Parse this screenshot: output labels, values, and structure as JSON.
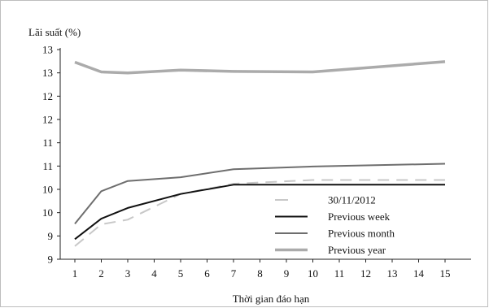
{
  "chart_data": {
    "type": "line",
    "ylabel": "Lãi suất (%)",
    "xlabel": "Thời gian đáo hạn",
    "x": [
      1,
      2,
      3,
      4,
      5,
      6,
      7,
      8,
      9,
      10,
      11,
      12,
      13,
      14,
      15
    ],
    "y_tick_labels": [
      "9",
      "9",
      "10",
      "10",
      "11",
      "11",
      "12",
      "12",
      "13",
      "13"
    ],
    "ylim": [
      9,
      13.5
    ],
    "grid": false,
    "legend_position": "bottom-center inside plot",
    "series": [
      {
        "name": "30/11/2012",
        "style": "dashed",
        "color": "#c8c8c8",
        "points": [
          [
            1,
            9.28
          ],
          [
            2,
            9.75
          ],
          [
            3,
            9.85
          ],
          [
            5,
            10.4
          ],
          [
            7,
            10.62
          ],
          [
            10,
            10.7
          ],
          [
            15,
            10.7
          ]
        ]
      },
      {
        "name": "Previous week",
        "style": "solid",
        "color": "#111111",
        "points": [
          [
            1,
            9.43
          ],
          [
            2,
            9.87
          ],
          [
            3,
            10.1
          ],
          [
            5,
            10.4
          ],
          [
            7,
            10.6
          ],
          [
            10,
            10.6
          ],
          [
            15,
            10.6
          ]
        ]
      },
      {
        "name": "Previous month",
        "style": "solid",
        "color": "#6e6e6e",
        "points": [
          [
            1,
            9.76
          ],
          [
            2,
            10.46
          ],
          [
            3,
            10.68
          ],
          [
            5,
            10.76
          ],
          [
            7,
            10.93
          ],
          [
            10,
            10.99
          ],
          [
            15,
            11.05
          ]
        ]
      },
      {
        "name": "Previous year",
        "style": "solid-thick",
        "color": "#ababab",
        "points": [
          [
            1,
            13.23
          ],
          [
            2,
            13.02
          ],
          [
            3,
            13.0
          ],
          [
            5,
            13.06
          ],
          [
            7,
            13.03
          ],
          [
            10,
            13.02
          ],
          [
            15,
            13.24
          ]
        ]
      }
    ]
  }
}
